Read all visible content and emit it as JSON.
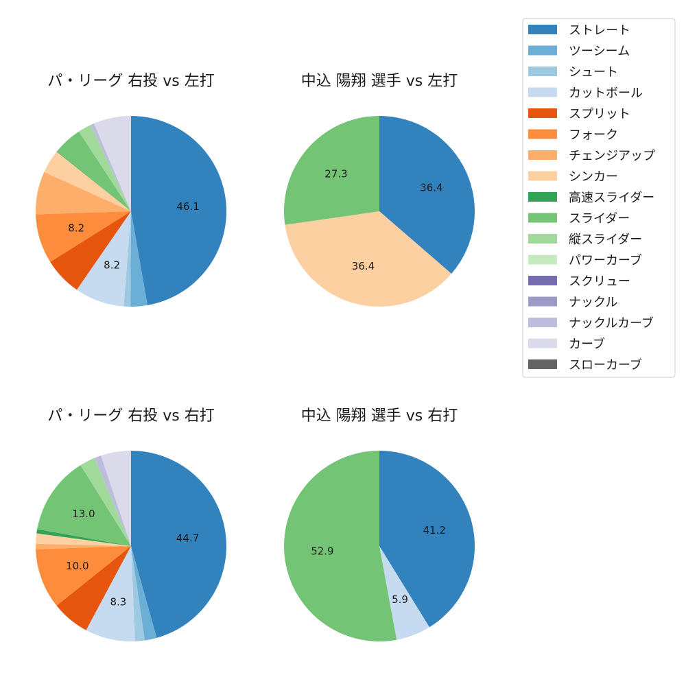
{
  "legend": {
    "placement": "top-right",
    "items": [
      {
        "label": "ストレート",
        "color": "#3182bd"
      },
      {
        "label": "ツーシーム",
        "color": "#6baed6"
      },
      {
        "label": "シュート",
        "color": "#9ecae1"
      },
      {
        "label": "カットボール",
        "color": "#c6dbef"
      },
      {
        "label": "スプリット",
        "color": "#e6550d"
      },
      {
        "label": "フォーク",
        "color": "#fd8d3c"
      },
      {
        "label": "チェンジアップ",
        "color": "#fdae6b"
      },
      {
        "label": "シンカー",
        "color": "#fdd0a2"
      },
      {
        "label": "高速スライダー",
        "color": "#31a354"
      },
      {
        "label": "スライダー",
        "color": "#74c476"
      },
      {
        "label": "縦スライダー",
        "color": "#a1d99b"
      },
      {
        "label": "パワーカーブ",
        "color": "#c7e9c0"
      },
      {
        "label": "スクリュー",
        "color": "#756bb1"
      },
      {
        "label": "ナックル",
        "color": "#9e9ac8"
      },
      {
        "label": "ナックルカーブ",
        "color": "#bcbddc"
      },
      {
        "label": "カーブ",
        "color": "#dadaeb"
      },
      {
        "label": "スローカーブ",
        "color": "#636363"
      }
    ]
  },
  "chart_data": [
    {
      "type": "pie",
      "title": "パ・リーグ 右投 vs 左打",
      "slices": [
        {
          "name": "ストレート",
          "value": 46.1,
          "label": "46.1"
        },
        {
          "name": "ツーシーム",
          "value": 2.8,
          "label": ""
        },
        {
          "name": "シュート",
          "value": 1.1,
          "label": ""
        },
        {
          "name": "カットボール",
          "value": 8.2,
          "label": "8.2"
        },
        {
          "name": "スプリット",
          "value": 6.3,
          "label": ""
        },
        {
          "name": "フォーク",
          "value": 8.2,
          "label": "8.2"
        },
        {
          "name": "チェンジアップ",
          "value": 7.1,
          "label": ""
        },
        {
          "name": "シンカー",
          "value": 3.9,
          "label": ""
        },
        {
          "name": "高速スライダー",
          "value": 0.1,
          "label": ""
        },
        {
          "name": "スライダー",
          "value": 4.8,
          "label": ""
        },
        {
          "name": "縦スライダー",
          "value": 2.2,
          "label": ""
        },
        {
          "name": "ナックルカーブ",
          "value": 0.6,
          "label": ""
        },
        {
          "name": "カーブ",
          "value": 6.2,
          "label": ""
        }
      ]
    },
    {
      "type": "pie",
      "title": "中込 陽翔 選手 vs 左打",
      "slices": [
        {
          "name": "ストレート",
          "value": 36.4,
          "label": "36.4"
        },
        {
          "name": "シンカー",
          "value": 36.4,
          "label": "36.4"
        },
        {
          "name": "スライダー",
          "value": 27.3,
          "label": "27.3"
        }
      ]
    },
    {
      "type": "pie",
      "title": "パ・リーグ 右投 vs 右打",
      "slices": [
        {
          "name": "ストレート",
          "value": 44.7,
          "label": "44.7"
        },
        {
          "name": "ツーシーム",
          "value": 2.0,
          "label": ""
        },
        {
          "name": "シュート",
          "value": 1.6,
          "label": ""
        },
        {
          "name": "カットボール",
          "value": 8.3,
          "label": "8.3"
        },
        {
          "name": "スプリット",
          "value": 6.3,
          "label": ""
        },
        {
          "name": "フォーク",
          "value": 10.0,
          "label": "10.0"
        },
        {
          "name": "チェンジアップ",
          "value": 0.9,
          "label": ""
        },
        {
          "name": "シンカー",
          "value": 1.7,
          "label": ""
        },
        {
          "name": "高速スライダー",
          "value": 0.7,
          "label": ""
        },
        {
          "name": "スライダー",
          "value": 13.0,
          "label": "13.0"
        },
        {
          "name": "縦スライダー",
          "value": 2.6,
          "label": ""
        },
        {
          "name": "ナックルカーブ",
          "value": 1.1,
          "label": ""
        },
        {
          "name": "カーブ",
          "value": 5.0,
          "label": ""
        }
      ]
    },
    {
      "type": "pie",
      "title": "中込 陽翔 選手 vs 右打",
      "slices": [
        {
          "name": "ストレート",
          "value": 41.2,
          "label": "41.2"
        },
        {
          "name": "カットボール",
          "value": 5.9,
          "label": "5.9"
        },
        {
          "name": "スライダー",
          "value": 52.9,
          "label": "52.9"
        }
      ]
    }
  ]
}
